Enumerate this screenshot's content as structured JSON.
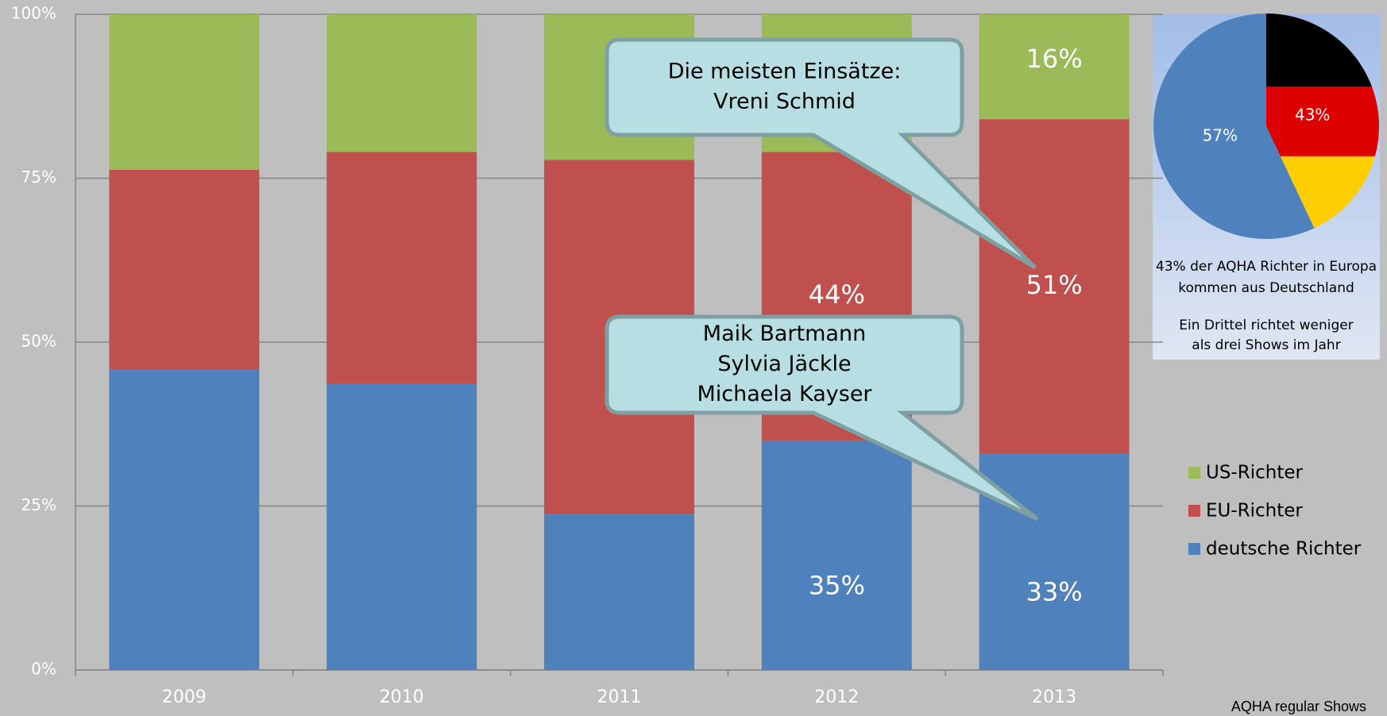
{
  "chart_data": [
    {
      "type": "stacked_bar",
      "categories": [
        "2009",
        "2010",
        "2011",
        "2012",
        "2013"
      ],
      "series": [
        {
          "name": "deutsche Richter",
          "color": "#4f81bd",
          "values": [
            45.8,
            43.6,
            23.8,
            35,
            33
          ],
          "value_labels": [
            null,
            null,
            null,
            "35%",
            "33%"
          ]
        },
        {
          "name": "EU-Richter",
          "color": "#c0504d",
          "values": [
            30.5,
            35.4,
            54,
            44,
            51
          ],
          "value_labels": [
            null,
            null,
            null,
            "44%",
            "51%"
          ]
        },
        {
          "name": "US-Richter",
          "color": "#9bbb59",
          "values": [
            23.7,
            21,
            22.2,
            21,
            16
          ],
          "value_labels": [
            null,
            null,
            null,
            null,
            "16%"
          ]
        }
      ],
      "ylim": [
        0,
        100
      ],
      "yticks": [
        {
          "value": 0,
          "label": "0%"
        },
        {
          "value": 25,
          "label": "25%"
        },
        {
          "value": 50,
          "label": "50%"
        },
        {
          "value": 75,
          "label": "75%"
        },
        {
          "value": 100,
          "label": "100%"
        }
      ],
      "grid": true,
      "annotations": [
        [
          "Die meisten Einsätze:",
          "Vreni Schmid"
        ],
        [
          "Maik Bartmann",
          "Sylvia Jäckle",
          "Michaela Kayser"
        ]
      ],
      "source": "AQHA regular Shows"
    },
    {
      "type": "pie",
      "values": [
        43,
        57
      ],
      "value_labels": [
        "43%",
        "57%"
      ],
      "color": "#4f81bd",
      "notes": [
        [
          "43% der AQHA Richter in Europa",
          "kommen aus Deutschland"
        ],
        [
          "Ein Drittel richtet weniger",
          "als drei Shows im Jahr"
        ]
      ]
    }
  ]
}
